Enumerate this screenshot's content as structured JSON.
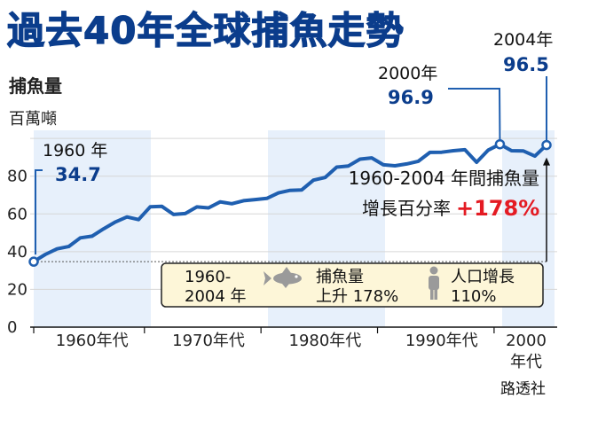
{
  "chart_data": {
    "type": "line",
    "title": "過去40年全球捕魚走勢",
    "ylabel": "捕魚量",
    "yunit": "百萬噸",
    "ylim": [
      0,
      105
    ],
    "yticks": [
      0,
      20,
      40,
      60,
      80
    ],
    "xlim": [
      1959.5,
      2004.5
    ],
    "xtick_labels": [
      "1960年代",
      "1970年代",
      "1980年代",
      "1990年代",
      "2000年代"
    ],
    "grid": true,
    "series": [
      {
        "x": [
          1960,
          1961,
          1962,
          1963,
          1964,
          1965,
          1966,
          1967,
          1968,
          1969,
          1970,
          1971,
          1972,
          1973,
          1974,
          1975,
          1976,
          1977,
          1978,
          1979,
          1980,
          1981,
          1982,
          1983,
          1984,
          1985,
          1986,
          1987,
          1988,
          1989,
          1990,
          1991,
          1992,
          1993,
          1994,
          1995,
          1996,
          1997,
          1998,
          1999,
          2000,
          2001,
          2002,
          2003,
          2004
        ],
        "values": [
          34.7,
          38.5,
          41.5,
          42.7,
          47.3,
          48.2,
          52.1,
          55.7,
          58.4,
          57.0,
          63.8,
          64.0,
          59.7,
          60.2,
          63.7,
          63.2,
          66.4,
          65.4,
          67.0,
          67.6,
          68.2,
          71.1,
          72.5,
          72.7,
          77.9,
          79.3,
          84.8,
          85.4,
          89.0,
          89.7,
          86.0,
          85.5,
          86.5,
          87.9,
          92.6,
          92.7,
          93.5,
          94.0,
          87.4,
          93.8,
          96.9,
          93.5,
          93.4,
          90.6,
          96.5
        ]
      }
    ],
    "annotations": [
      {
        "label": "1960 年",
        "value": "34.7",
        "x": 1960,
        "y": 34.7
      },
      {
        "label": "2000年",
        "value": "96.9",
        "x": 2000,
        "y": 96.9
      },
      {
        "label": "2004年",
        "value": "96.5",
        "x": 2004,
        "y": 96.5
      }
    ],
    "growth_note": {
      "line1": "1960-2004 年間捕魚量",
      "line2": "增長百分率",
      "value": "+178%"
    },
    "legend": {
      "period_line1": "1960-",
      "period_line2": "2004 年",
      "fish_line1": "捕魚量",
      "fish_line2": "上升 178%",
      "people_line1": "人口增長",
      "people_line2": "110%"
    },
    "colors": {
      "line": "#1f5fb0",
      "title": "#0b3d8c",
      "value_text": "#0b3d8c",
      "growth": "#e41b23",
      "band": "#e7f0fb",
      "legend_bg": "#fdf6d8"
    }
  },
  "credit": "路透社"
}
